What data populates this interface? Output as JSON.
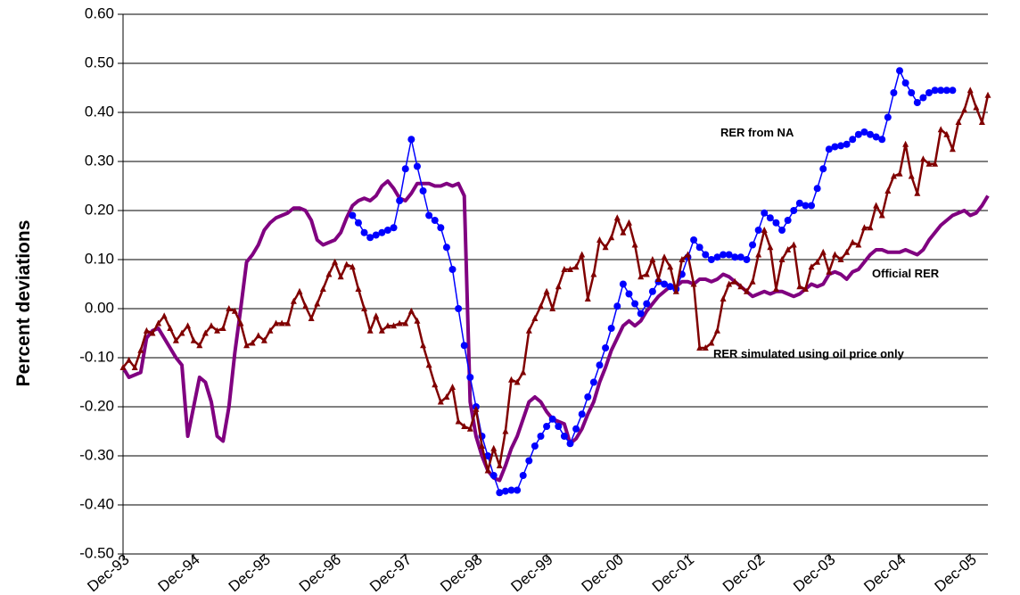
{
  "chart_data": {
    "type": "line",
    "y_label": "Percent deviations",
    "categories": [
      "Dec-93",
      null,
      null,
      null,
      null,
      null,
      null,
      null,
      null,
      null,
      null,
      null,
      "Dec-94",
      null,
      null,
      null,
      null,
      null,
      null,
      null,
      null,
      null,
      null,
      null,
      "Dec-95",
      null,
      null,
      null,
      null,
      null,
      null,
      null,
      null,
      null,
      null,
      null,
      "Dec-96",
      null,
      null,
      null,
      null,
      null,
      null,
      null,
      null,
      null,
      null,
      null,
      "Dec-97",
      null,
      null,
      null,
      null,
      null,
      null,
      null,
      null,
      null,
      null,
      null,
      "Dec-98",
      null,
      null,
      null,
      null,
      null,
      null,
      null,
      null,
      null,
      null,
      null,
      "Dec-99",
      null,
      null,
      null,
      null,
      null,
      null,
      null,
      null,
      null,
      null,
      null,
      "Dec-00",
      null,
      null,
      null,
      null,
      null,
      null,
      null,
      null,
      null,
      null,
      null,
      "Dec-01",
      null,
      null,
      null,
      null,
      null,
      null,
      null,
      null,
      null,
      null,
      null,
      "Dec-02",
      null,
      null,
      null,
      null,
      null,
      null,
      null,
      null,
      null,
      null,
      null,
      "Dec-03",
      null,
      null,
      null,
      null,
      null,
      null,
      null,
      null,
      null,
      null,
      null,
      "Dec-04",
      null,
      null,
      null,
      null,
      null,
      null,
      null,
      null,
      null,
      null,
      null,
      "Dec-05",
      null,
      null,
      null
    ],
    "ylim": [
      -0.5,
      0.6
    ],
    "yticks": [
      {
        "value": -0.5,
        "label": "-0.50"
      },
      {
        "value": -0.4,
        "label": "-0.40"
      },
      {
        "value": -0.3,
        "label": "-0.30"
      },
      {
        "value": -0.2,
        "label": "-0.20"
      },
      {
        "value": -0.1,
        "label": "-0.10"
      },
      {
        "value": 0,
        "label": "0.00"
      },
      {
        "value": 0.1,
        "label": "0.10"
      },
      {
        "value": 0.2,
        "label": "0.20"
      },
      {
        "value": 0.3,
        "label": "0.30"
      },
      {
        "value": 0.4,
        "label": "0.40"
      },
      {
        "value": 0.5,
        "label": "0.50"
      },
      {
        "value": 0.6,
        "label": "0.60"
      }
    ],
    "grid": true,
    "series": [
      {
        "name": "Official RER",
        "color": "#800080",
        "line_width": 4,
        "marker": null,
        "values": [
          -0.12,
          -0.14,
          -0.135,
          -0.13,
          -0.06,
          -0.045,
          -0.04,
          -0.06,
          -0.08,
          -0.1,
          -0.115,
          -0.26,
          -0.2,
          -0.14,
          -0.15,
          -0.19,
          -0.26,
          -0.27,
          -0.2,
          -0.09,
          0.0,
          0.095,
          0.11,
          0.13,
          0.16,
          0.175,
          0.185,
          0.19,
          0.195,
          0.205,
          0.205,
          0.2,
          0.18,
          0.14,
          0.13,
          0.135,
          0.14,
          0.155,
          0.185,
          0.21,
          0.22,
          0.225,
          0.22,
          0.23,
          0.25,
          0.26,
          0.245,
          0.225,
          0.22,
          0.235,
          0.255,
          0.255,
          0.255,
          0.25,
          0.25,
          0.255,
          0.25,
          0.255,
          0.23,
          -0.19,
          -0.26,
          -0.3,
          -0.33,
          -0.345,
          -0.35,
          -0.32,
          -0.285,
          -0.26,
          -0.225,
          -0.19,
          -0.18,
          -0.19,
          -0.21,
          -0.225,
          -0.23,
          -0.235,
          -0.275,
          -0.265,
          -0.245,
          -0.215,
          -0.19,
          -0.15,
          -0.12,
          -0.085,
          -0.06,
          -0.035,
          -0.025,
          -0.035,
          -0.025,
          -0.005,
          0.01,
          0.025,
          0.035,
          0.045,
          0.045,
          0.055,
          0.055,
          0.05,
          0.06,
          0.06,
          0.055,
          0.06,
          0.07,
          0.065,
          0.055,
          0.045,
          0.035,
          0.025,
          0.03,
          0.035,
          0.03,
          0.035,
          0.035,
          0.03,
          0.025,
          0.03,
          0.04,
          0.05,
          0.045,
          0.05,
          0.07,
          0.075,
          0.07,
          0.06,
          0.075,
          0.08,
          0.095,
          0.11,
          0.12,
          0.12,
          0.115,
          0.115,
          0.115,
          0.12,
          0.115,
          0.11,
          0.12,
          0.14,
          0.155,
          0.17,
          0.18,
          0.19,
          0.195,
          0.2,
          0.19,
          0.195,
          0.21,
          0.23
        ]
      },
      {
        "name": "RER from NA",
        "color": "#0000ff",
        "line_width": 1.5,
        "marker": "circle",
        "values": [
          null,
          null,
          null,
          null,
          null,
          null,
          null,
          null,
          null,
          null,
          null,
          null,
          null,
          null,
          null,
          null,
          null,
          null,
          null,
          null,
          null,
          null,
          null,
          null,
          null,
          null,
          null,
          null,
          null,
          null,
          null,
          null,
          null,
          null,
          null,
          null,
          null,
          null,
          null,
          0.19,
          0.175,
          0.155,
          0.145,
          0.15,
          0.155,
          0.16,
          0.165,
          0.22,
          0.285,
          0.345,
          0.29,
          0.24,
          0.19,
          0.18,
          0.165,
          0.125,
          0.08,
          0,
          -0.075,
          -0.14,
          -0.2,
          -0.26,
          -0.3,
          -0.34,
          -0.375,
          -0.372,
          -0.37,
          -0.37,
          -0.34,
          -0.31,
          -0.28,
          -0.26,
          -0.24,
          -0.225,
          -0.24,
          -0.26,
          -0.275,
          -0.245,
          -0.215,
          -0.18,
          -0.15,
          -0.115,
          -0.08,
          -0.04,
          0.005,
          0.05,
          0.03,
          0.01,
          -0.01,
          0.01,
          0.035,
          0.055,
          0.05,
          0.045,
          0.04,
          0.07,
          0.105,
          0.14,
          0.125,
          0.11,
          0.1,
          0.105,
          0.11,
          0.11,
          0.105,
          0.105,
          0.1,
          0.13,
          0.16,
          0.195,
          0.185,
          0.175,
          0.16,
          0.18,
          0.2,
          0.215,
          0.21,
          0.21,
          0.245,
          0.285,
          0.325,
          0.33,
          0.332,
          0.335,
          0.345,
          0.355,
          0.36,
          0.355,
          0.35,
          0.345,
          0.39,
          0.44,
          0.485,
          0.46,
          0.44,
          0.42,
          0.43,
          0.44,
          0.445,
          0.445,
          0.445,
          0.445,
          null,
          null,
          null,
          null,
          null,
          null
        ]
      },
      {
        "name": "RER simulated using oil price only",
        "color": "#800000",
        "line_width": 2.5,
        "marker": "triangle",
        "values": [
          -0.12,
          -0.105,
          -0.12,
          -0.085,
          -0.045,
          -0.05,
          -0.03,
          -0.015,
          -0.04,
          -0.065,
          -0.05,
          -0.035,
          -0.065,
          -0.075,
          -0.05,
          -0.035,
          -0.045,
          -0.04,
          0.0,
          -0.005,
          -0.03,
          -0.075,
          -0.07,
          -0.055,
          -0.065,
          -0.045,
          -0.03,
          -0.03,
          -0.03,
          0.015,
          0.035,
          0.005,
          -0.02,
          0.01,
          0.04,
          0.07,
          0.095,
          0.065,
          0.09,
          0.085,
          0.04,
          0.0,
          -0.045,
          -0.015,
          -0.045,
          -0.035,
          -0.035,
          -0.03,
          -0.03,
          -0.005,
          -0.025,
          -0.075,
          -0.115,
          -0.155,
          -0.19,
          -0.18,
          -0.16,
          -0.23,
          -0.24,
          -0.245,
          -0.205,
          -0.28,
          -0.33,
          -0.285,
          -0.32,
          -0.25,
          -0.145,
          -0.15,
          -0.13,
          -0.045,
          -0.02,
          0.005,
          0.035,
          0.0,
          0.045,
          0.08,
          0.08,
          0.085,
          0.11,
          0.02,
          0.07,
          0.14,
          0.125,
          0.145,
          0.185,
          0.155,
          0.175,
          0.13,
          0.065,
          0.07,
          0.1,
          0.06,
          0.105,
          0.085,
          0.035,
          0.1,
          0.11,
          0.05,
          -0.08,
          -0.08,
          -0.07,
          -0.045,
          0.02,
          0.05,
          0.055,
          0.045,
          0.035,
          0.055,
          0.11,
          0.16,
          0.125,
          0.04,
          0.1,
          0.12,
          0.13,
          0.045,
          0.04,
          0.085,
          0.095,
          0.115,
          0.075,
          0.11,
          0.1,
          0.115,
          0.135,
          0.13,
          0.165,
          0.165,
          0.21,
          0.19,
          0.24,
          0.27,
          0.275,
          0.335,
          0.27,
          0.235,
          0.305,
          0.295,
          0.295,
          0.365,
          0.355,
          0.325,
          0.38,
          0.405,
          0.445,
          0.41,
          0.38,
          0.435
        ]
      }
    ]
  }
}
